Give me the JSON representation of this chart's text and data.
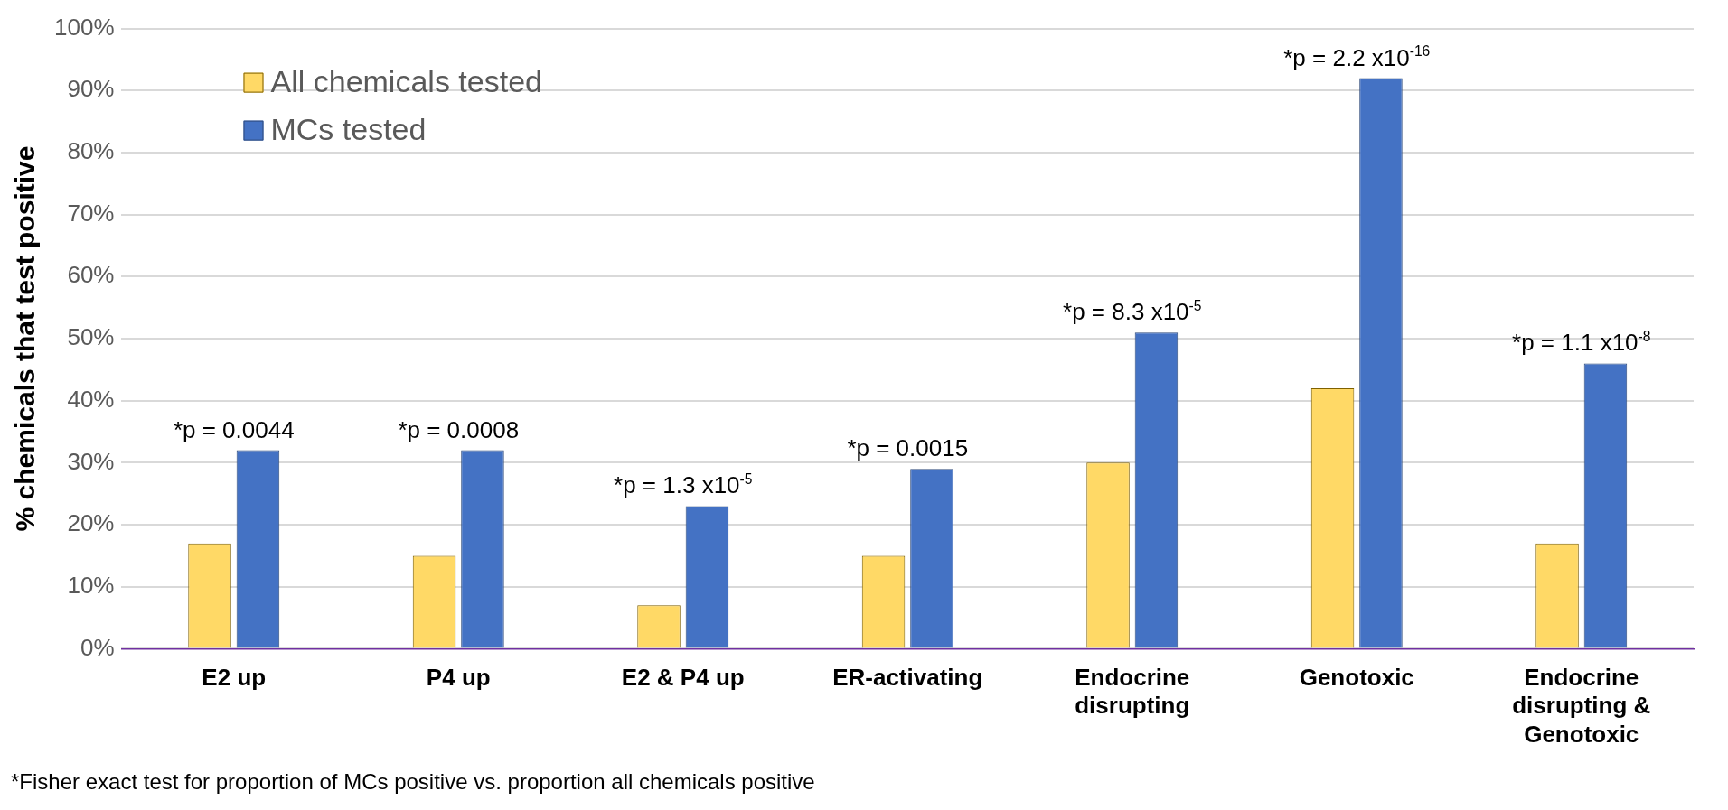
{
  "chart_data": {
    "type": "bar",
    "ylabel": "% chemicals that test positive",
    "categories": [
      "E2 up",
      "P4 up",
      "E2 & P4 up",
      "ER-activating",
      "Endocrine disrupting",
      "Genotoxic",
      "Endocrine disrupting & Genotoxic"
    ],
    "series": [
      {
        "name": "All chemicals tested",
        "color": "#ffd966",
        "values": [
          17,
          15,
          7,
          15,
          30,
          42,
          17
        ]
      },
      {
        "name": "MCs tested",
        "color": "#4472c4",
        "values": [
          32,
          32,
          23,
          29,
          51,
          92,
          46
        ]
      }
    ],
    "ylim": [
      0,
      100
    ],
    "yticks": [
      {
        "value": 0,
        "label": "0%"
      },
      {
        "value": 10,
        "label": "10%"
      },
      {
        "value": 20,
        "label": "20%"
      },
      {
        "value": 30,
        "label": "30%"
      },
      {
        "value": 40,
        "label": "40%"
      },
      {
        "value": 50,
        "label": "50%"
      },
      {
        "value": 60,
        "label": "60%"
      },
      {
        "value": 70,
        "label": "70%"
      },
      {
        "value": 80,
        "label": "80%"
      },
      {
        "value": 90,
        "label": "90%"
      },
      {
        "value": 100,
        "label": "100%"
      }
    ],
    "grid": "y",
    "legend": "top left",
    "annotations": [
      {
        "text": "*p = 0.0044",
        "x": "E2 up",
        "y": 32
      },
      {
        "text": "*p = 0.0008",
        "x": "P4 up",
        "y": 32
      },
      {
        "text": "*p = 1.3 x10$^{-5}$",
        "x": "E2 & P4 up",
        "y": 23
      },
      {
        "text": "*p = 0.0015",
        "x": "ER-activating",
        "y": 29
      },
      {
        "text": "*p = 8.3 x10$^{-5}$",
        "x": "Endocrine disrupting",
        "y": 51
      },
      {
        "text": "*p = 2.2 x10$^{-16}$",
        "x": "Genotoxic",
        "y": 92
      },
      {
        "text": "*p = 1.1 x10$^{-8}$",
        "x": "Endocrine disrupting & Genotoxic",
        "y": 46
      },
      "*Fisher exact test for proportion of MCs positive vs. proportion all chemicals positive"
    ]
  }
}
